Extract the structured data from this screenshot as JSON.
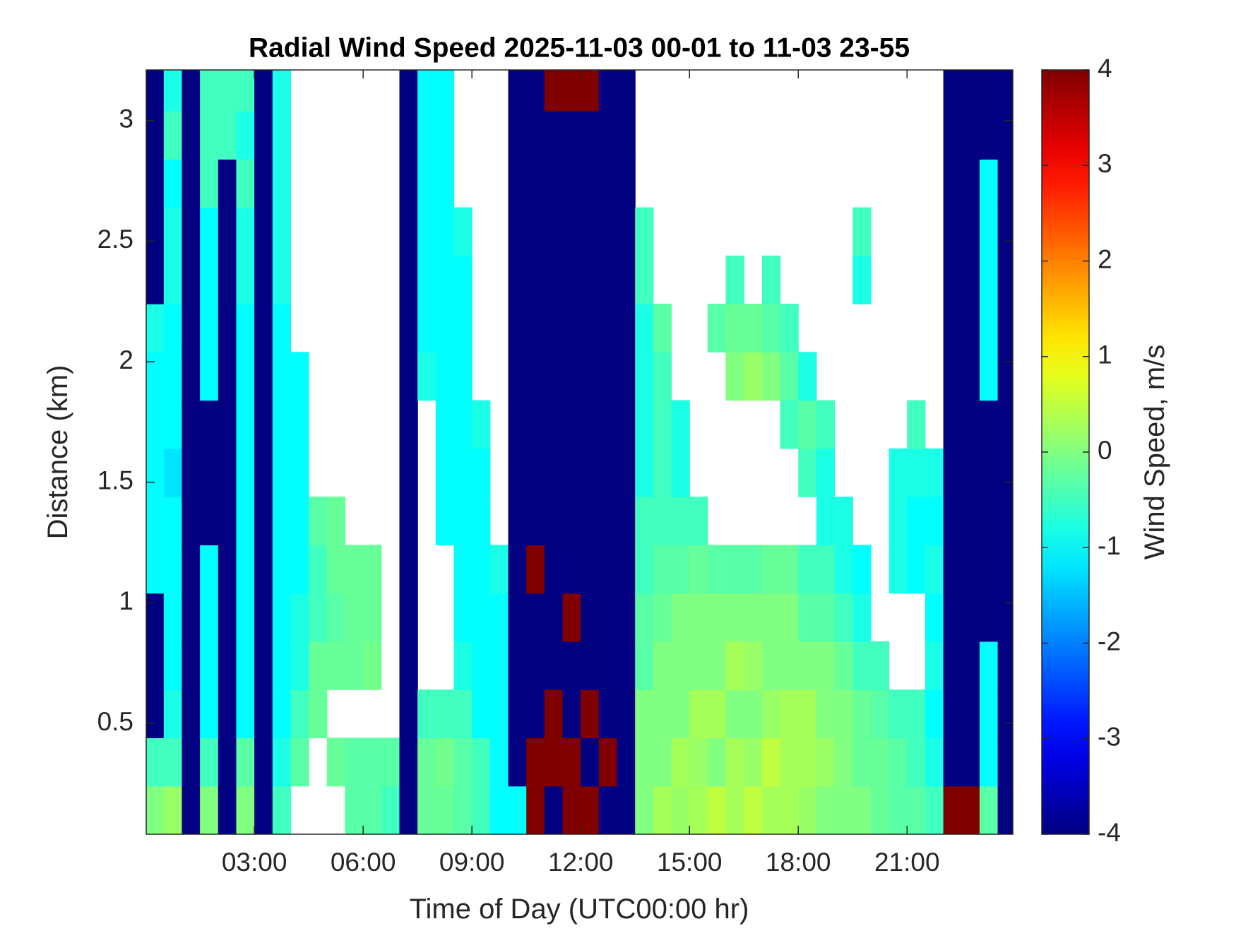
{
  "chart_data": {
    "type": "heatmap",
    "title": "Radial Wind Speed 2025-11-03 00-01 to 11-03 23-55",
    "xlabel": "Time of Day (UTC00:00 hr)",
    "ylabel": "Distance (km)",
    "x": [
      0.25,
      0.75,
      1.25,
      1.75,
      2.25,
      2.75,
      3.25,
      3.75,
      4.25,
      4.75,
      5.25,
      5.75,
      6.25,
      6.75,
      7.25,
      7.75,
      8.25,
      8.75,
      9.25,
      9.75,
      10.25,
      10.75,
      11.25,
      11.75,
      12.25,
      12.75,
      13.25,
      13.75,
      14.25,
      14.75,
      15.25,
      15.75,
      16.25,
      16.75,
      17.25,
      17.75,
      18.25,
      18.75,
      19.25,
      19.75,
      20.25,
      20.75,
      21.25,
      21.75,
      22.25,
      22.75,
      23.25,
      23.75
    ],
    "y": [
      0.14,
      0.34,
      0.54,
      0.74,
      0.94,
      1.14,
      1.34,
      1.54,
      1.74,
      1.94,
      2.14,
      2.34,
      2.54,
      2.74,
      2.94,
      3.14
    ],
    "values": [
      [
        0,
        -0.5,
        -4,
        -4,
        -4,
        -1,
        -1,
        -1,
        -1,
        -1,
        -0.8,
        -4,
        -4,
        -4,
        -4,
        -4
      ],
      [
        0.2,
        -0.5,
        -0.8,
        -1,
        -1,
        -1,
        -1,
        -1.2,
        -1,
        -1,
        -1,
        -0.8,
        -0.8,
        -1,
        -0.5,
        -0.8
      ],
      [
        -4,
        -4,
        -4,
        -4,
        -4,
        -4,
        -4,
        -4,
        -4,
        -4,
        -4,
        -4,
        -4,
        -4,
        -4,
        -4
      ],
      [
        0,
        -0.5,
        -1,
        -1,
        -1,
        -1,
        -4,
        -4,
        -4,
        -1,
        -1,
        -1,
        -1,
        -0.5,
        -0.5,
        -0.5
      ],
      [
        -4,
        -4,
        -4,
        -4,
        -4,
        -4,
        -4,
        -4,
        -4,
        -4,
        -4,
        -4,
        -4,
        -4,
        -0.5,
        -0.5
      ],
      [
        0,
        -0.3,
        -1,
        -1,
        -1,
        -1,
        -1,
        -1,
        -1,
        -1,
        -1,
        -0.8,
        -0.8,
        -0.5,
        -0.8,
        -0.5
      ],
      [
        -4,
        -4,
        -4,
        -4,
        -4,
        -4,
        -4,
        -4,
        -4,
        -4,
        -4,
        -4,
        -4,
        -4,
        -4,
        -4
      ],
      [
        -0.5,
        -0.8,
        -1,
        -1,
        -1,
        -1,
        -1,
        -1,
        -1,
        -1,
        -1,
        -0.8,
        -0.8,
        -0.8,
        -0.8,
        -0.8
      ],
      [
        null,
        -0.3,
        -0.5,
        -0.8,
        -0.8,
        -1,
        -1,
        -1,
        -1,
        -1,
        null,
        null,
        null,
        null,
        null,
        null
      ],
      [
        null,
        null,
        -0.2,
        -0.2,
        -0.5,
        -0.5,
        -0.3,
        null,
        null,
        null,
        null,
        null,
        null,
        null,
        null,
        null
      ],
      [
        null,
        -0.2,
        null,
        -0.2,
        -0.3,
        -0.2,
        -0.2,
        null,
        null,
        null,
        null,
        null,
        null,
        null,
        null,
        null
      ],
      [
        -0.3,
        -0.3,
        null,
        -0.2,
        -0.2,
        -0.2,
        null,
        null,
        null,
        null,
        null,
        null,
        null,
        null,
        null,
        null
      ],
      [
        -0.3,
        -0.3,
        null,
        -0.1,
        -0.2,
        -0.2,
        null,
        null,
        null,
        null,
        null,
        null,
        null,
        null,
        null,
        null
      ],
      [
        -0.5,
        -0.3,
        null,
        null,
        null,
        null,
        null,
        null,
        null,
        null,
        null,
        null,
        null,
        null,
        null,
        null
      ],
      [
        -4,
        -4,
        -4,
        -4,
        -4,
        -4,
        -4,
        -4,
        -4,
        -4,
        -4,
        -4,
        -4,
        -4,
        -4,
        -4
      ],
      [
        -0.2,
        -0.2,
        -0.5,
        null,
        null,
        null,
        null,
        null,
        null,
        -0.8,
        -1,
        -1,
        -1,
        -1,
        -1,
        -1
      ],
      [
        -0.2,
        -0.1,
        -0.5,
        null,
        null,
        null,
        -1,
        -1,
        -1,
        -1,
        -1,
        -1,
        -1,
        -1,
        -1,
        -1
      ],
      [
        -0.3,
        -0.3,
        -0.5,
        -0.8,
        -1,
        -1,
        -1,
        -1,
        -1,
        -1,
        -1,
        -1,
        -0.8,
        null,
        null,
        null
      ],
      [
        -0.5,
        -0.5,
        -1,
        -1,
        -1,
        -1,
        -1,
        -1,
        -0.8,
        null,
        null,
        null,
        null,
        null,
        null,
        null
      ],
      [
        -1,
        -1,
        -1,
        -1,
        -1,
        -0.8,
        null,
        null,
        null,
        null,
        null,
        null,
        null,
        null,
        null,
        null
      ],
      [
        -1,
        -4,
        -4,
        -4,
        -4,
        -4,
        -4,
        -4,
        -4,
        -4,
        -4,
        -4,
        -4,
        -4,
        -4,
        -4
      ],
      [
        4,
        4,
        -4,
        -4,
        -4,
        4,
        -4,
        -4,
        -4,
        -4,
        -4,
        -4,
        -4,
        -4,
        -4,
        -4
      ],
      [
        -4,
        4,
        4,
        -4,
        -4,
        -4,
        -4,
        -4,
        -4,
        -4,
        -4,
        -4,
        -4,
        -4,
        -4,
        4
      ],
      [
        4,
        4,
        -4,
        -4,
        4,
        -4,
        -4,
        -4,
        -4,
        -4,
        -4,
        -4,
        -4,
        -4,
        -4,
        4
      ],
      [
        4,
        -4,
        4,
        -4,
        -4,
        -4,
        -4,
        -4,
        -4,
        -4,
        -4,
        -4,
        -4,
        -4,
        -4,
        4
      ],
      [
        -4,
        4,
        -4,
        -4,
        -4,
        -4,
        -4,
        -4,
        -4,
        -4,
        -4,
        -4,
        -4,
        -4,
        -4,
        -4
      ],
      [
        -4,
        -4,
        -4,
        -4,
        -4,
        -4,
        -4,
        -4,
        -4,
        -4,
        -4,
        -4,
        -4,
        -4,
        -4,
        -4
      ],
      [
        0,
        0,
        0,
        -0.3,
        -0.3,
        -0.5,
        -0.5,
        -0.8,
        -0.8,
        -0.8,
        -0.8,
        -0.5,
        -0.5,
        null,
        null,
        null
      ],
      [
        0.3,
        0,
        0,
        0,
        -0.2,
        -0.3,
        -0.5,
        -0.5,
        -0.5,
        -0.5,
        -0.3,
        null,
        null,
        null,
        null,
        null
      ],
      [
        0.2,
        0.3,
        0,
        0,
        0,
        -0.3,
        -0.5,
        -0.8,
        -0.8,
        null,
        null,
        null,
        null,
        null,
        null,
        null
      ],
      [
        0.3,
        0.2,
        0.3,
        0,
        0,
        -0.2,
        -0.5,
        null,
        null,
        null,
        null,
        null,
        null,
        null,
        null,
        null
      ],
      [
        0.5,
        0,
        0.3,
        0,
        0,
        -0.3,
        null,
        null,
        null,
        null,
        -0.3,
        null,
        null,
        null,
        null,
        null
      ],
      [
        0.3,
        0.3,
        0,
        0.3,
        0,
        -0.3,
        null,
        null,
        null,
        0,
        -0.2,
        -0.5,
        null,
        null,
        null,
        null
      ],
      [
        0.5,
        0.2,
        0,
        0.2,
        0,
        -0.3,
        null,
        null,
        null,
        0.2,
        -0.2,
        null,
        null,
        null,
        null,
        null
      ],
      [
        0.3,
        0.5,
        0.2,
        0,
        0,
        -0.2,
        null,
        null,
        null,
        0,
        -0.3,
        -0.5,
        null,
        null,
        null,
        null
      ],
      [
        0.3,
        0.3,
        0.3,
        0,
        0,
        -0.2,
        null,
        null,
        -0.5,
        -0.3,
        -0.5,
        null,
        null,
        null,
        null,
        null
      ],
      [
        0.2,
        0.3,
        0.3,
        0,
        -0.3,
        -0.5,
        null,
        -0.5,
        -0.3,
        -0.8,
        null,
        null,
        null,
        null,
        null,
        null
      ],
      [
        0,
        0.2,
        0,
        0,
        -0.3,
        -0.5,
        -0.8,
        -0.8,
        -0.5,
        null,
        null,
        null,
        null,
        null,
        null,
        null
      ],
      [
        0,
        0,
        0,
        -0.2,
        -0.5,
        -0.8,
        -0.8,
        null,
        null,
        null,
        null,
        null,
        null,
        null,
        null,
        null
      ],
      [
        0,
        -0.2,
        -0.2,
        -0.5,
        -0.8,
        -1,
        null,
        null,
        null,
        null,
        null,
        -0.8,
        -0.5,
        null,
        null,
        null
      ],
      [
        -0.2,
        -0.2,
        -0.3,
        -0.5,
        null,
        null,
        null,
        null,
        null,
        null,
        null,
        null,
        null,
        null,
        null,
        null
      ],
      [
        -0.3,
        -0.3,
        -0.5,
        null,
        null,
        -0.8,
        -0.8,
        -0.8,
        null,
        null,
        null,
        null,
        null,
        null,
        null,
        null
      ],
      [
        -0.3,
        -0.5,
        -0.5,
        null,
        null,
        -1,
        -1,
        -0.8,
        -0.5,
        null,
        null,
        null,
        null,
        null,
        null,
        null
      ],
      [
        -0.5,
        -0.8,
        -1,
        -0.8,
        -1,
        -0.8,
        -1,
        -0.8,
        null,
        null,
        null,
        null,
        null,
        null,
        null,
        null
      ],
      [
        4,
        -4,
        -4,
        -4,
        -4,
        -4,
        -4,
        -4,
        -4,
        -4,
        -4,
        -4,
        -4,
        -4,
        -4,
        -4
      ],
      [
        4,
        -4,
        -4,
        -4,
        -4,
        -4,
        -4,
        -4,
        -4,
        -4,
        -4,
        -4,
        -4,
        -4,
        -4,
        -4
      ],
      [
        -0.3,
        -1,
        -1,
        -1,
        -4,
        -4,
        -4,
        -4,
        -4,
        -1,
        -1,
        -1,
        -1,
        -1,
        -4,
        -4
      ],
      [
        -4,
        -4,
        -4,
        -4,
        -4,
        -4,
        -4,
        -4,
        -4,
        -4,
        -4,
        -4,
        -4,
        -4,
        -4,
        -4
      ]
    ],
    "xlim": [
      0.017,
      23.917
    ],
    "ylim": [
      0.04,
      3.21
    ],
    "xticks": [
      {
        "value": 3,
        "label": "03:00"
      },
      {
        "value": 6,
        "label": "06:00"
      },
      {
        "value": 9,
        "label": "09:00"
      },
      {
        "value": 12,
        "label": "12:00"
      },
      {
        "value": 15,
        "label": "15:00"
      },
      {
        "value": 18,
        "label": "18:00"
      },
      {
        "value": 21,
        "label": "21:00"
      }
    ],
    "yticks": [
      0.5,
      1,
      1.5,
      2,
      2.5,
      3
    ],
    "colorbar": {
      "label": "Wind Speed, m/s",
      "clim": [
        -4,
        4
      ],
      "ticks": [
        -4,
        -3,
        -2,
        -1,
        0,
        1,
        2,
        3,
        4
      ],
      "colormap": "jet"
    }
  }
}
